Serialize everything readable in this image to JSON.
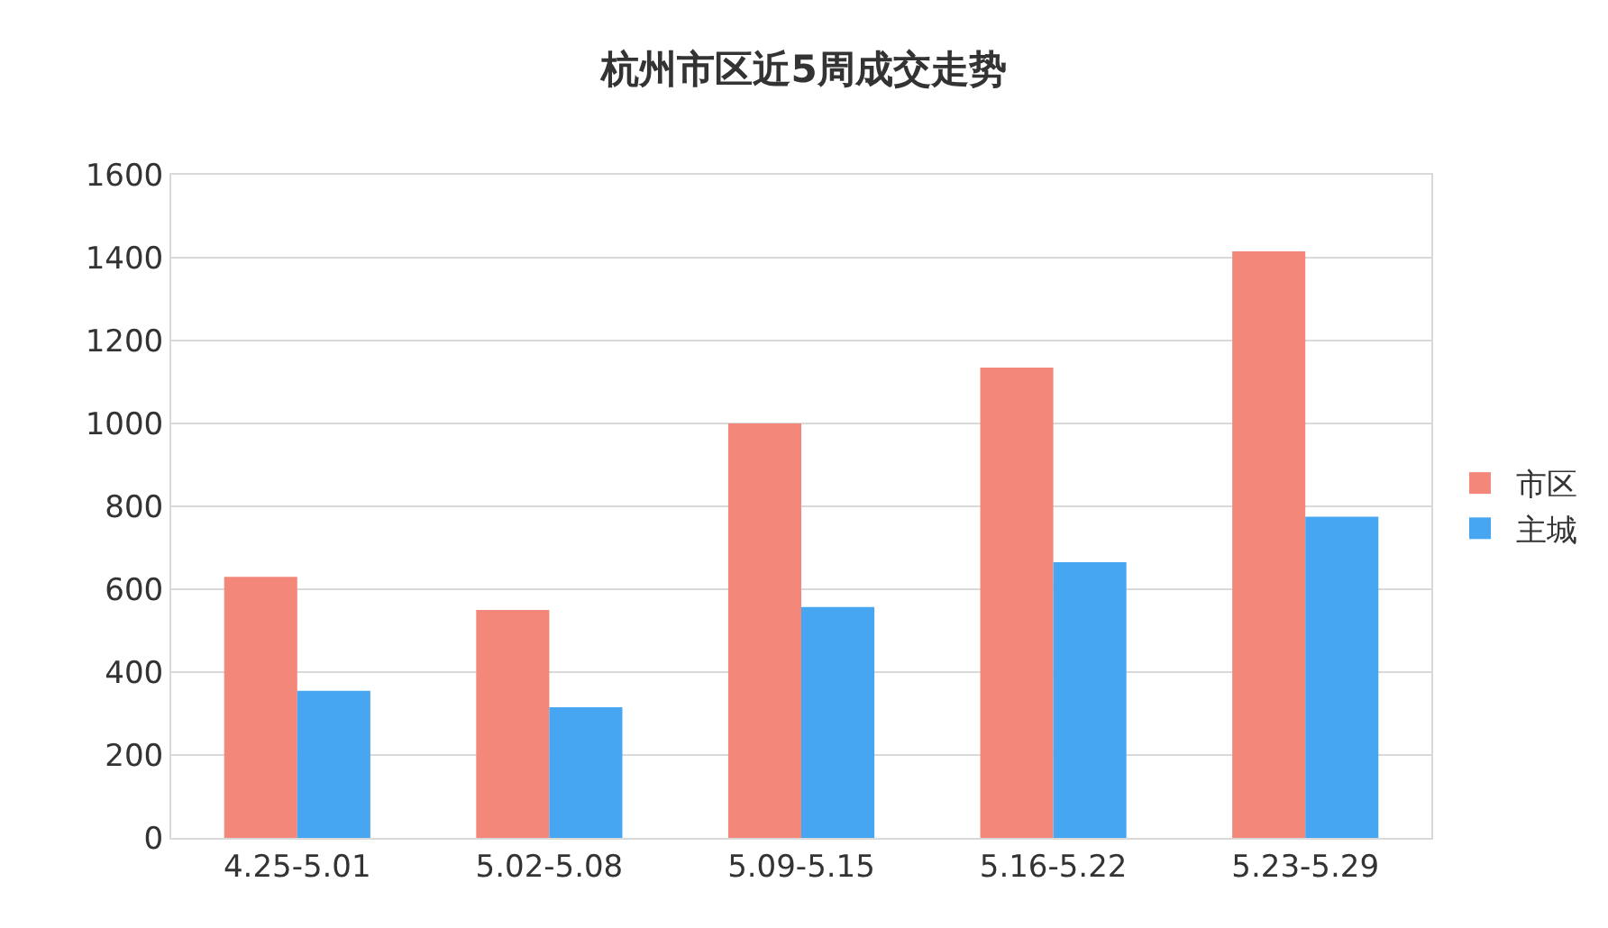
{
  "chart_data": {
    "type": "bar",
    "title": "杭州市区近5周成交走势",
    "categories": [
      "4.25-5.01",
      "5.02-5.08",
      "5.09-5.15",
      "5.16-5.22",
      "5.23-5.29"
    ],
    "series": [
      {
        "name": "市区",
        "color": "#f3877a",
        "values": [
          630,
          550,
          1000,
          1135,
          1415
        ]
      },
      {
        "name": "主城",
        "color": "#47a6f1",
        "values": [
          355,
          315,
          557,
          665,
          775
        ]
      }
    ],
    "ylim": [
      0,
      1600
    ],
    "yticks": [
      0,
      200,
      400,
      600,
      800,
      1000,
      1200,
      1400,
      1600
    ],
    "grid": "y",
    "legend": "right"
  }
}
